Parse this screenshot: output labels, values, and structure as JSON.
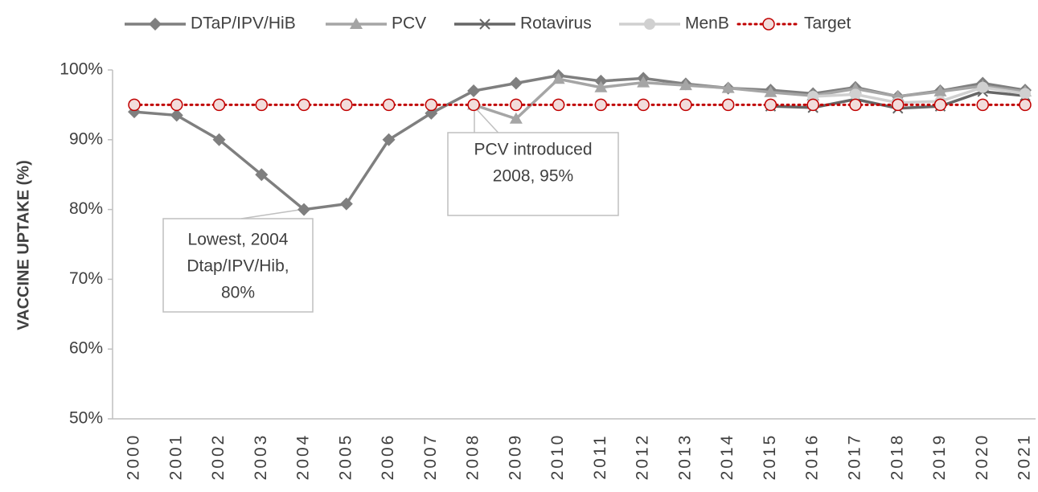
{
  "chart_data": {
    "type": "line",
    "y_label": "VACCINE UPTAKE (%)",
    "categories": [
      "2000",
      "2001",
      "2002",
      "2003",
      "2004",
      "2005",
      "2006",
      "2007",
      "2008",
      "2009",
      "2010",
      "2011",
      "2012",
      "2013",
      "2014",
      "2015",
      "2016",
      "2017",
      "2018",
      "2019",
      "2020",
      "2021"
    ],
    "series": [
      {
        "name": "DTaP/IPV/HiB",
        "color": "#7f7f7f",
        "marker": "diamond",
        "dash": "solid",
        "values": [
          94,
          93.5,
          90,
          85,
          80,
          80.8,
          90,
          93.8,
          97,
          98.1,
          99.2,
          98.4,
          98.8,
          98,
          97.4,
          97.1,
          96.6,
          97.5,
          96.2,
          97,
          98.1,
          97.1
        ]
      },
      {
        "name": "PCV",
        "color": "#a5a5a5",
        "marker": "triangle",
        "dash": "solid",
        "values": [
          null,
          null,
          null,
          null,
          null,
          null,
          null,
          null,
          95,
          93,
          98.7,
          97.5,
          98.2,
          97.8,
          97.4,
          96.8,
          96.3,
          97.3,
          96.2,
          96.9,
          97.7,
          96.9
        ]
      },
      {
        "name": "Rotavirus",
        "color": "#666666",
        "marker": "x",
        "dash": "solid",
        "values": [
          null,
          null,
          null,
          null,
          null,
          null,
          null,
          null,
          null,
          null,
          null,
          null,
          null,
          null,
          null,
          94.8,
          94.6,
          95.8,
          94.5,
          94.8,
          96.9,
          96.3
        ]
      },
      {
        "name": "MenB",
        "color": "#d0d0d0",
        "marker": "circle",
        "dash": "solid",
        "values": [
          null,
          null,
          null,
          null,
          null,
          null,
          null,
          null,
          null,
          null,
          null,
          null,
          null,
          null,
          null,
          null,
          96.2,
          96.5,
          95.3,
          95.5,
          97.5,
          96.6
        ]
      },
      {
        "name": "Target",
        "color": "#c00000",
        "marker": "circle-open",
        "dash": "dotted",
        "values": [
          95,
          95,
          95,
          95,
          95,
          95,
          95,
          95,
          95,
          95,
          95,
          95,
          95,
          95,
          95,
          95,
          95,
          95,
          95,
          95,
          95,
          95
        ]
      }
    ],
    "ylim": [
      50,
      100
    ],
    "yticks": [
      {
        "value": 50,
        "label": "50%"
      },
      {
        "value": 60,
        "label": "60%"
      },
      {
        "value": 70,
        "label": "70%"
      },
      {
        "value": 80,
        "label": "80%"
      },
      {
        "value": 90,
        "label": "90%"
      },
      {
        "value": 100,
        "label": "100%"
      }
    ],
    "legend": "top",
    "annotations": [
      {
        "lines": [
          "Lowest, 2004",
          "Dtap/IPV/Hib,",
          "80%"
        ]
      },
      {
        "lines": [
          "PCV introduced",
          "2008, 95%"
        ]
      }
    ]
  }
}
